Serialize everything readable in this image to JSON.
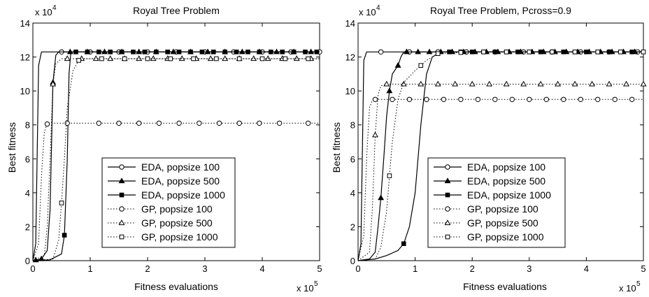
{
  "chart_data": [
    {
      "type": "line",
      "title": "Royal Tree Problem",
      "xlabel": "Fitness evaluations",
      "ylabel": "Best fitness",
      "x_multiplier": "x 10",
      "x_exponent": "5",
      "y_multiplier": "x 10",
      "y_exponent": "4",
      "xlim": [
        0,
        5
      ],
      "ylim": [
        0,
        14
      ],
      "x_ticks": [
        0,
        1,
        2,
        3,
        4,
        5
      ],
      "y_ticks": [
        0,
        2,
        4,
        6,
        8,
        10,
        12,
        14
      ],
      "grid": false,
      "legend_position": "lower-center",
      "series": [
        {
          "name": "EDA, popsize 100",
          "style": "solid",
          "marker": "circle-open",
          "x": [
            0,
            0.05,
            0.1,
            0.15,
            0.2,
            0.3,
            0.5,
            1,
            2,
            3,
            4,
            5
          ],
          "y": [
            0,
            1,
            11.5,
            12.3,
            12.3,
            12.3,
            12.3,
            12.3,
            12.3,
            12.3,
            12.3,
            12.3
          ],
          "marker_x": [
            0.5,
            1.0,
            1.5,
            2.0,
            2.5,
            3.0,
            3.5,
            4.0,
            4.5,
            5.0
          ]
        },
        {
          "name": "EDA, popsize 500",
          "style": "solid",
          "marker": "triangle-filled",
          "x": [
            0,
            0.15,
            0.25,
            0.3,
            0.35,
            0.4,
            0.45,
            1,
            2,
            3,
            4,
            5
          ],
          "y": [
            0,
            0.1,
            0.6,
            3,
            10.5,
            12.1,
            12.3,
            12.3,
            12.3,
            12.3,
            12.3,
            12.3
          ],
          "marker_x": [
            0.05,
            0.15,
            0.35,
            0.65,
            0.95,
            1.25,
            1.55,
            1.85,
            2.15,
            2.45,
            2.75,
            3.05,
            3.35,
            3.65,
            3.95,
            4.25,
            4.55,
            4.85
          ]
        },
        {
          "name": "EDA, popsize 1000",
          "style": "solid",
          "marker": "square-filled",
          "x": [
            0,
            0.3,
            0.5,
            0.55,
            0.6,
            0.63,
            0.66,
            0.7,
            1,
            2,
            3,
            4,
            5
          ],
          "y": [
            0,
            0.05,
            0.4,
            1.5,
            6,
            11,
            12.2,
            12.3,
            12.3,
            12.3,
            12.3,
            12.3,
            12.3
          ],
          "marker_x": [
            0.55,
            0.75,
            0.95,
            1.15,
            1.35,
            1.55,
            1.75,
            1.95,
            2.15,
            2.35,
            2.55,
            2.75,
            2.95,
            3.15,
            3.35,
            3.55,
            3.75,
            3.95,
            4.15,
            4.35,
            4.55,
            4.75,
            4.95
          ]
        },
        {
          "name": "GP, popsize 100",
          "style": "dotted",
          "marker": "circle-open",
          "x": [
            0,
            0.1,
            0.15,
            0.2,
            0.25,
            0.3,
            1,
            2,
            3,
            4,
            5
          ],
          "y": [
            0,
            1,
            5,
            7.6,
            8.05,
            8.1,
            8.1,
            8.1,
            8.1,
            8.1,
            8.1
          ],
          "marker_x": [
            0.25,
            0.6,
            1.15,
            1.5,
            1.85,
            2.2,
            2.55,
            2.9,
            3.25,
            3.6,
            3.95,
            4.3,
            4.8
          ]
        },
        {
          "name": "GP, popsize 500",
          "style": "dotted",
          "marker": "triangle-open",
          "x": [
            0,
            0.2,
            0.25,
            0.3,
            0.35,
            0.4,
            0.5,
            1,
            2,
            3,
            4,
            5
          ],
          "y": [
            0,
            0.3,
            2,
            6,
            10.4,
            11.6,
            11.9,
            11.9,
            11.9,
            11.9,
            11.9,
            11.9
          ],
          "marker_x": [
            0.35,
            0.6,
            0.85,
            1.1,
            1.35,
            1.6,
            1.85,
            2.1,
            2.35,
            2.6,
            2.85,
            3.1,
            3.35,
            3.6,
            3.85,
            4.1,
            4.35,
            4.6,
            4.85
          ]
        },
        {
          "name": "GP, popsize 1000",
          "style": "dotted",
          "marker": "square-open",
          "x": [
            0,
            0.35,
            0.45,
            0.5,
            0.55,
            0.6,
            0.7,
            0.8,
            0.9,
            1,
            2,
            3,
            4,
            5
          ],
          "y": [
            0,
            0.1,
            1.2,
            3.4,
            6,
            9,
            11.2,
            11.8,
            11.9,
            11.9,
            11.9,
            11.9,
            11.9,
            11.9
          ],
          "marker_x": [
            0.5,
            0.8,
            1.2,
            1.6,
            2.0,
            2.4,
            2.8,
            3.2,
            3.6,
            4.0,
            4.4,
            4.8
          ]
        }
      ]
    },
    {
      "type": "line",
      "title": "Royal Tree Problem, Pcross=0.9",
      "xlabel": "Fitness evaluations",
      "ylabel": "Best fitness",
      "x_multiplier": "x 10",
      "x_exponent": "5",
      "y_multiplier": "x 10",
      "y_exponent": "4",
      "xlim": [
        0,
        5
      ],
      "ylim": [
        0,
        14
      ],
      "x_ticks": [
        0,
        1,
        2,
        3,
        4,
        5
      ],
      "y_ticks": [
        0,
        2,
        4,
        6,
        8,
        10,
        12,
        14
      ],
      "grid": false,
      "legend_position": "lower-center",
      "series": [
        {
          "name": "EDA, popsize 100",
          "style": "solid",
          "marker": "circle-open",
          "x": [
            0,
            0.05,
            0.1,
            0.15,
            0.2,
            0.3,
            0.5,
            1,
            2,
            3,
            4,
            5
          ],
          "y": [
            0,
            1,
            11.8,
            12.3,
            12.3,
            12.3,
            12.3,
            12.3,
            12.3,
            12.3,
            12.3,
            12.3
          ],
          "marker_x": [
            0.4,
            0.9,
            1.4,
            1.9,
            2.4,
            2.9,
            3.4,
            3.9,
            4.4,
            4.9
          ]
        },
        {
          "name": "EDA, popsize 500",
          "style": "solid",
          "marker": "triangle-filled",
          "x": [
            0,
            0.2,
            0.3,
            0.35,
            0.4,
            0.45,
            0.5,
            0.55,
            0.6,
            0.7,
            0.75,
            0.8,
            1,
            2,
            3,
            4,
            5
          ],
          "y": [
            0,
            0.1,
            0.5,
            2,
            3.7,
            6,
            8.5,
            10,
            11,
            11.5,
            12,
            12.3,
            12.3,
            12.3,
            12.3,
            12.3,
            12.3
          ],
          "marker_x": [
            0.4,
            0.55,
            0.7,
            0.85,
            1.05,
            1.25,
            1.45,
            1.65,
            1.85,
            2.05,
            2.25,
            2.45,
            2.65,
            2.85,
            3.05,
            3.25,
            3.45,
            3.65,
            3.85,
            4.05,
            4.25,
            4.45,
            4.65,
            4.85
          ]
        },
        {
          "name": "EDA, popsize 1000",
          "style": "solid",
          "marker": "square-filled",
          "x": [
            0,
            0.3,
            0.5,
            0.7,
            0.8,
            0.9,
            1.0,
            1.05,
            1.1,
            1.15,
            1.2,
            1.3,
            1.4,
            1.5,
            2,
            3,
            4,
            5
          ],
          "y": [
            0,
            0.1,
            0.3,
            0.6,
            1,
            2,
            4,
            6,
            8,
            9.5,
            11,
            12,
            12.2,
            12.3,
            12.3,
            12.3,
            12.3,
            12.3
          ],
          "marker_x": [
            0.8,
            1.6,
            1.8,
            2.0,
            2.2,
            2.4,
            2.6,
            2.8,
            3.0,
            3.2,
            3.4,
            3.6,
            3.8,
            4.0,
            4.2,
            4.4,
            4.6,
            4.8
          ]
        },
        {
          "name": "GP, popsize 100",
          "style": "dotted",
          "marker": "circle-open",
          "x": [
            0,
            0.1,
            0.15,
            0.2,
            0.25,
            0.3,
            1,
            2,
            3,
            4,
            5
          ],
          "y": [
            0,
            1.5,
            6,
            9,
            9.45,
            9.5,
            9.5,
            9.5,
            9.5,
            9.5,
            9.5
          ],
          "marker_x": [
            0.3,
            0.6,
            0.9,
            1.2,
            1.5,
            1.8,
            2.1,
            2.4,
            2.7,
            3.0,
            3.3,
            3.6,
            3.9,
            4.2,
            4.5,
            4.8
          ]
        },
        {
          "name": "GP, popsize 500",
          "style": "dotted",
          "marker": "triangle-open",
          "x": [
            0,
            0.2,
            0.25,
            0.3,
            0.35,
            0.4,
            0.5,
            1,
            2,
            3,
            4,
            5
          ],
          "y": [
            0,
            0.5,
            3,
            7.4,
            9.8,
            10.3,
            10.4,
            10.4,
            10.4,
            10.4,
            10.4,
            10.4
          ],
          "marker_x": [
            0.3,
            0.5,
            0.8,
            1.1,
            1.4,
            1.7,
            2.0,
            2.3,
            2.6,
            2.9,
            3.2,
            3.5,
            3.8,
            4.1,
            4.4,
            4.7,
            5.0
          ]
        },
        {
          "name": "GP, popsize 1000",
          "style": "dotted",
          "marker": "square-open",
          "x": [
            0,
            0.3,
            0.4,
            0.5,
            0.55,
            0.6,
            0.7,
            0.8,
            1.0,
            1.2,
            1.4,
            2,
            3,
            4,
            5
          ],
          "y": [
            0,
            0.1,
            0.8,
            2.9,
            5,
            7,
            9.5,
            10.5,
            11.2,
            11.8,
            12.2,
            12.3,
            12.3,
            12.3,
            12.3
          ],
          "marker_x": [
            0.55,
            1.1,
            1.4,
            1.8,
            2.2,
            2.6,
            3.0,
            3.4,
            3.8,
            4.2,
            4.6,
            5.0
          ]
        }
      ]
    }
  ]
}
